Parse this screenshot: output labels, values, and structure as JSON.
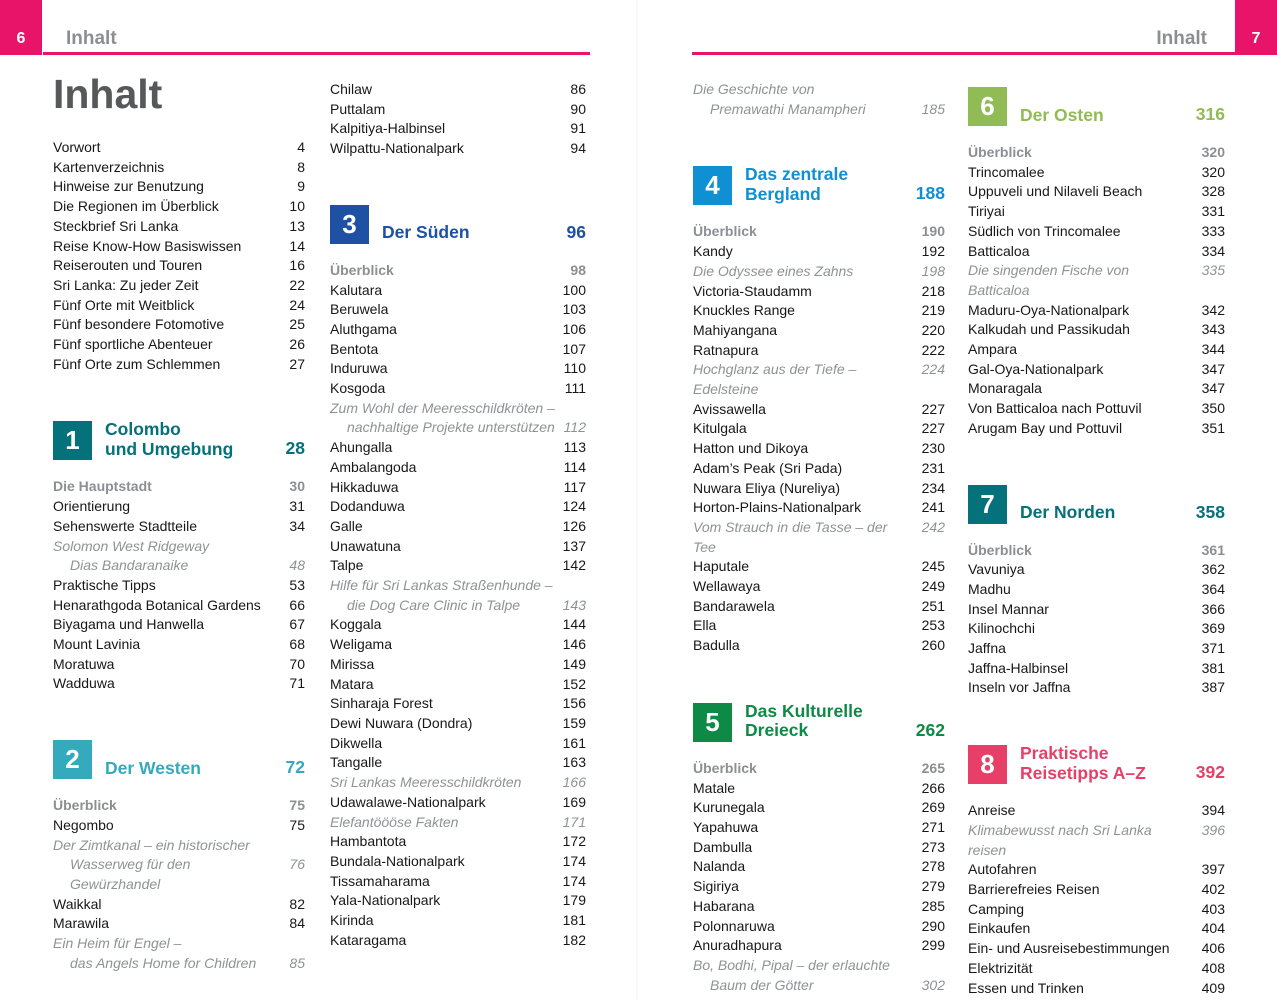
{
  "colors": {
    "accent_pink": "#e7146a",
    "chapter_teal": "#05717a",
    "chapter_cyan": "#35aabd",
    "chapter_darkblue": "#1e50a3",
    "chapter_blue": "#0e90d3",
    "chapter_green": "#0d8a46",
    "chapter_lightgreen": "#91bb55",
    "chapter_pink": "#e73f68",
    "header_gray": "#8c8f92",
    "title_gray": "#57585a"
  },
  "header": {
    "left": {
      "page_num": "6",
      "title": "Inhalt"
    },
    "right": {
      "page_num": "7",
      "title": "Inhalt"
    }
  },
  "columns": [
    {
      "blocks": [
        {
          "type": "title",
          "text": "Inhalt"
        },
        {
          "type": "entries",
          "items": [
            {
              "t": "Vorwort",
              "p": "4",
              "s": "n"
            },
            {
              "t": "Kartenverzeichnis",
              "p": "8",
              "s": "n"
            },
            {
              "t": "Hinweise zur Benutzung",
              "p": "9",
              "s": "n"
            },
            {
              "t": "Die Regionen im Überblick",
              "p": "10",
              "s": "n"
            },
            {
              "t": "Steckbrief Sri Lanka",
              "p": "13",
              "s": "n"
            },
            {
              "t": "Reise Know-How Basiswissen",
              "p": "14",
              "s": "n"
            },
            {
              "t": "Reiserouten und Touren",
              "p": "16",
              "s": "n"
            },
            {
              "t": "Sri Lanka: Zu jeder Zeit",
              "p": "22",
              "s": "n"
            },
            {
              "t": "Fünf Orte mit Weitblick",
              "p": "24",
              "s": "n"
            },
            {
              "t": "Fünf besondere Fotomotive",
              "p": "25",
              "s": "n"
            },
            {
              "t": "Fünf sportliche Abenteuer",
              "p": "26",
              "s": "n"
            },
            {
              "t": "Fünf Orte zum Schlemmen",
              "p": "27",
              "s": "n"
            }
          ]
        },
        {
          "type": "chapter",
          "num": "1",
          "lines": [
            "Colombo",
            "und Umgebung"
          ],
          "page": "28",
          "color": "#05717a"
        },
        {
          "type": "entries",
          "items": [
            {
              "t": "Die Hauptstadt",
              "p": "30",
              "s": "h"
            },
            {
              "t": "Orientierung",
              "p": "31",
              "s": "n"
            },
            {
              "t": "Sehenswerte Stadtteile",
              "p": "34",
              "s": "n"
            },
            {
              "t": "Solomon West Ridgeway",
              "p": "",
              "s": "i"
            },
            {
              "t": "Dias Bandaranaike",
              "p": "48",
              "s": "i",
              "ind": true
            },
            {
              "t": "Praktische Tipps",
              "p": "53",
              "s": "n"
            },
            {
              "t": "Henarathgoda Botanical Gardens",
              "p": "66",
              "s": "n"
            },
            {
              "t": "Biyagama und Hanwella",
              "p": "67",
              "s": "n"
            },
            {
              "t": "Mount Lavinia",
              "p": "68",
              "s": "n"
            },
            {
              "t": "Moratuwa",
              "p": "70",
              "s": "n"
            },
            {
              "t": "Wadduwa",
              "p": "71",
              "s": "n"
            }
          ]
        },
        {
          "type": "chapter",
          "num": "2",
          "lines": [
            "Der Westen"
          ],
          "page": "72",
          "color": "#35aabd"
        },
        {
          "type": "entries",
          "items": [
            {
              "t": "Überblick",
              "p": "75",
              "s": "h"
            },
            {
              "t": "Negombo",
              "p": "75",
              "s": "n"
            },
            {
              "t": "Der Zimtkanal – ein historischer",
              "p": "",
              "s": "i"
            },
            {
              "t": "Wasserweg für den Gewürzhandel",
              "p": "76",
              "s": "i",
              "ind": true
            },
            {
              "t": "Waikkal",
              "p": "82",
              "s": "n"
            },
            {
              "t": "Marawila",
              "p": "84",
              "s": "n"
            },
            {
              "t": "Ein Heim für Engel –",
              "p": "",
              "s": "i"
            },
            {
              "t": "das Angels Home for Children",
              "p": "85",
              "s": "i",
              "ind": true
            }
          ]
        }
      ]
    },
    {
      "blocks": [
        {
          "type": "entries",
          "items": [
            {
              "t": "Chilaw",
              "p": "86",
              "s": "n"
            },
            {
              "t": "Puttalam",
              "p": "90",
              "s": "n"
            },
            {
              "t": "Kalpitiya-Halbinsel",
              "p": "91",
              "s": "n"
            },
            {
              "t": "Wilpattu-Nationalpark",
              "p": "94",
              "s": "n"
            }
          ]
        },
        {
          "type": "chapter",
          "num": "3",
          "lines": [
            "Der Süden"
          ],
          "page": "96",
          "color": "#1e50a3"
        },
        {
          "type": "entries",
          "items": [
            {
              "t": "Überblick",
              "p": "98",
              "s": "h"
            },
            {
              "t": "Kalutara",
              "p": "100",
              "s": "n"
            },
            {
              "t": "Beruwela",
              "p": "103",
              "s": "n"
            },
            {
              "t": "Aluthgama",
              "p": "106",
              "s": "n"
            },
            {
              "t": "Bentota",
              "p": "107",
              "s": "n"
            },
            {
              "t": "Induruwa",
              "p": "110",
              "s": "n"
            },
            {
              "t": "Kosgoda",
              "p": "111",
              "s": "n"
            },
            {
              "t": "Zum Wohl der Meeresschildkröten –",
              "p": "",
              "s": "i"
            },
            {
              "t": "nachhaltige Projekte unterstützen",
              "p": "112",
              "s": "i",
              "ind": true
            },
            {
              "t": "Ahungalla",
              "p": "113",
              "s": "n"
            },
            {
              "t": "Ambalangoda",
              "p": "114",
              "s": "n"
            },
            {
              "t": "Hikkaduwa",
              "p": "117",
              "s": "n"
            },
            {
              "t": "Dodanduwa",
              "p": "124",
              "s": "n"
            },
            {
              "t": "Galle",
              "p": "126",
              "s": "n"
            },
            {
              "t": "Unawatuna",
              "p": "137",
              "s": "n"
            },
            {
              "t": "Talpe",
              "p": "142",
              "s": "n"
            },
            {
              "t": "Hilfe für Sri Lankas Straßenhunde –",
              "p": "",
              "s": "i"
            },
            {
              "t": "die Dog Care Clinic in Talpe",
              "p": "143",
              "s": "i",
              "ind": true
            },
            {
              "t": "Koggala",
              "p": "144",
              "s": "n"
            },
            {
              "t": "Weligama",
              "p": "146",
              "s": "n"
            },
            {
              "t": "Mirissa",
              "p": "149",
              "s": "n"
            },
            {
              "t": "Matara",
              "p": "152",
              "s": "n"
            },
            {
              "t": "Sinharaja Forest",
              "p": "156",
              "s": "n"
            },
            {
              "t": "Dewi Nuwara (Dondra)",
              "p": "159",
              "s": "n"
            },
            {
              "t": "Dikwella",
              "p": "161",
              "s": "n"
            },
            {
              "t": "Tangalle",
              "p": "163",
              "s": "n"
            },
            {
              "t": "Sri Lankas Meeresschildkröten",
              "p": "166",
              "s": "i"
            },
            {
              "t": "Udawalawe-Nationalpark",
              "p": "169",
              "s": "n"
            },
            {
              "t": "Elefantöööse Fakten",
              "p": "171",
              "s": "i"
            },
            {
              "t": "Hambantota",
              "p": "172",
              "s": "n"
            },
            {
              "t": "Bundala-Nationalpark",
              "p": "174",
              "s": "n"
            },
            {
              "t": "Tissamaharama",
              "p": "174",
              "s": "n"
            },
            {
              "t": "Yala-Nationalpark",
              "p": "179",
              "s": "n"
            },
            {
              "t": "Kirinda",
              "p": "181",
              "s": "n"
            },
            {
              "t": "Kataragama",
              "p": "182",
              "s": "n"
            }
          ]
        }
      ]
    },
    {
      "blocks": [
        {
          "type": "entries",
          "items": [
            {
              "t": "Die Geschichte von",
              "p": "",
              "s": "i"
            },
            {
              "t": "Premawathi Manampheri",
              "p": "185",
              "s": "i",
              "ind": true
            }
          ]
        },
        {
          "type": "chapter",
          "num": "4",
          "lines": [
            "Das zentrale Bergland"
          ],
          "page": "188",
          "color": "#0e90d3"
        },
        {
          "type": "entries",
          "items": [
            {
              "t": "Überblick",
              "p": "190",
              "s": "h"
            },
            {
              "t": "Kandy",
              "p": "192",
              "s": "n"
            },
            {
              "t": "Die Odyssee eines Zahns",
              "p": "198",
              "s": "i"
            },
            {
              "t": "Victoria-Staudamm",
              "p": "218",
              "s": "n"
            },
            {
              "t": "Knuckles Range",
              "p": "219",
              "s": "n"
            },
            {
              "t": "Mahiyangana",
              "p": "220",
              "s": "n"
            },
            {
              "t": "Ratnapura",
              "p": "222",
              "s": "n"
            },
            {
              "t": "Hochglanz aus der Tiefe – Edelsteine",
              "p": "224",
              "s": "i"
            },
            {
              "t": "Avissawella",
              "p": "227",
              "s": "n"
            },
            {
              "t": "Kitulgala",
              "p": "227",
              "s": "n"
            },
            {
              "t": "Hatton und Dikoya",
              "p": "230",
              "s": "n"
            },
            {
              "t": "Adam’s Peak (Sri Pada)",
              "p": "231",
              "s": "n"
            },
            {
              "t": "Nuwara Eliya (Nureliya)",
              "p": "234",
              "s": "n"
            },
            {
              "t": "Horton-Plains-Nationalpark",
              "p": "241",
              "s": "n"
            },
            {
              "t": "Vom Strauch in die Tasse – der Tee",
              "p": "242",
              "s": "i"
            },
            {
              "t": "Haputale",
              "p": "245",
              "s": "n"
            },
            {
              "t": "Wellawaya",
              "p": "249",
              "s": "n"
            },
            {
              "t": "Bandarawela",
              "p": "251",
              "s": "n"
            },
            {
              "t": "Ella",
              "p": "253",
              "s": "n"
            },
            {
              "t": "Badulla",
              "p": "260",
              "s": "n"
            }
          ]
        },
        {
          "type": "chapter",
          "num": "5",
          "lines": [
            "Das Kulturelle Dreieck"
          ],
          "page": "262",
          "color": "#0d8a46"
        },
        {
          "type": "entries",
          "items": [
            {
              "t": "Überblick",
              "p": "265",
              "s": "h"
            },
            {
              "t": "Matale",
              "p": "266",
              "s": "n"
            },
            {
              "t": "Kurunegala",
              "p": "269",
              "s": "n"
            },
            {
              "t": "Yapahuwa",
              "p": "271",
              "s": "n"
            },
            {
              "t": "Dambulla",
              "p": "273",
              "s": "n"
            },
            {
              "t": "Nalanda",
              "p": "278",
              "s": "n"
            },
            {
              "t": "Sigiriya",
              "p": "279",
              "s": "n"
            },
            {
              "t": "Habarana",
              "p": "285",
              "s": "n"
            },
            {
              "t": "Polonnaruwa",
              "p": "290",
              "s": "n"
            },
            {
              "t": "Anuradhapura",
              "p": "299",
              "s": "n"
            },
            {
              "t": "Bo, Bodhi, Pipal – der erlauchte",
              "p": "",
              "s": "i"
            },
            {
              "t": "Baum der Götter",
              "p": "302",
              "s": "i",
              "ind": true
            }
          ]
        }
      ]
    },
    {
      "blocks": [
        {
          "type": "chapter",
          "num": "6",
          "lines": [
            "Der Osten"
          ],
          "page": "316",
          "color": "#91bb55"
        },
        {
          "type": "entries",
          "items": [
            {
              "t": "Überblick",
              "p": "320",
              "s": "h"
            },
            {
              "t": "Trincomalee",
              "p": "320",
              "s": "n"
            },
            {
              "t": "Uppuveli und Nilaveli Beach",
              "p": "328",
              "s": "n"
            },
            {
              "t": "Tiriyai",
              "p": "331",
              "s": "n"
            },
            {
              "t": "Südlich von Trincomalee",
              "p": "333",
              "s": "n"
            },
            {
              "t": "Batticaloa",
              "p": "334",
              "s": "n"
            },
            {
              "t": "Die singenden Fische von Batticaloa",
              "p": "335",
              "s": "i"
            },
            {
              "t": "Maduru-Oya-Nationalpark",
              "p": "342",
              "s": "n"
            },
            {
              "t": "Kalkudah und Passikudah",
              "p": "343",
              "s": "n"
            },
            {
              "t": "Ampara",
              "p": "344",
              "s": "n"
            },
            {
              "t": "Gal-Oya-Nationalpark",
              "p": "347",
              "s": "n"
            },
            {
              "t": "Monaragala",
              "p": "347",
              "s": "n"
            },
            {
              "t": "Von Batticaloa nach Pottuvil",
              "p": "350",
              "s": "n"
            },
            {
              "t": "Arugam Bay und Pottuvil",
              "p": "351",
              "s": "n"
            }
          ]
        },
        {
          "type": "chapter",
          "num": "7",
          "lines": [
            "Der Norden"
          ],
          "page": "358",
          "color": "#05717a"
        },
        {
          "type": "entries",
          "items": [
            {
              "t": "Überblick",
              "p": "361",
              "s": "h"
            },
            {
              "t": "Vavuniya",
              "p": "362",
              "s": "n"
            },
            {
              "t": "Madhu",
              "p": "364",
              "s": "n"
            },
            {
              "t": "Insel Mannar",
              "p": "366",
              "s": "n"
            },
            {
              "t": "Kilinochchi",
              "p": "369",
              "s": "n"
            },
            {
              "t": "Jaffna",
              "p": "371",
              "s": "n"
            },
            {
              "t": "Jaffna-Halbinsel",
              "p": "381",
              "s": "n"
            },
            {
              "t": "Inseln vor Jaffna",
              "p": "387",
              "s": "n"
            }
          ]
        },
        {
          "type": "chapter",
          "num": "8",
          "lines": [
            "Praktische",
            "Reisetipps A–Z"
          ],
          "page": "392",
          "color": "#e73f68"
        },
        {
          "type": "entries",
          "items": [
            {
              "t": "Anreise",
              "p": "394",
              "s": "n"
            },
            {
              "t": "Klimabewusst nach Sri Lanka reisen",
              "p": "396",
              "s": "i"
            },
            {
              "t": "Autofahren",
              "p": "397",
              "s": "n"
            },
            {
              "t": "Barrierefreies Reisen",
              "p": "402",
              "s": "n"
            },
            {
              "t": "Camping",
              "p": "403",
              "s": "n"
            },
            {
              "t": "Einkaufen",
              "p": "404",
              "s": "n"
            },
            {
              "t": "Ein- und Ausreisebestimmungen",
              "p": "406",
              "s": "n"
            },
            {
              "t": "Elektrizität",
              "p": "408",
              "s": "n"
            },
            {
              "t": "Essen und Trinken",
              "p": "409",
              "s": "n"
            }
          ]
        }
      ]
    }
  ]
}
